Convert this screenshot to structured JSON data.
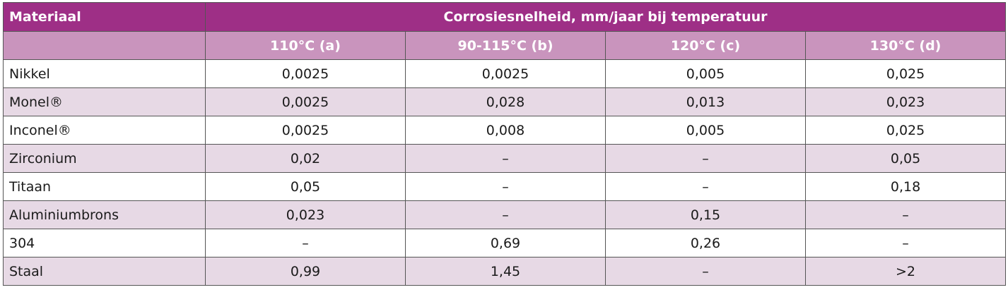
{
  "table": {
    "header": {
      "material_label": "Materiaal",
      "group_label": "Corrosiesnelheid, mm/jaar bij temperatuur",
      "columns": [
        "110°C (a)",
        "90-115°C (b)",
        "120°C (c)",
        "130°C (d)"
      ]
    },
    "rows": [
      {
        "material": "Nikkel",
        "values": [
          "0,0025",
          "0,0025",
          "0,005",
          "0,025"
        ]
      },
      {
        "material": "Monel®",
        "values": [
          "0,0025",
          "0,028",
          "0,013",
          "0,023"
        ]
      },
      {
        "material": "Inconel®",
        "values": [
          "0,0025",
          "0,008",
          "0,005",
          "0,025"
        ]
      },
      {
        "material": "Zirconium",
        "values": [
          "0,02",
          "–",
          "–",
          "0,05"
        ]
      },
      {
        "material": "Titaan",
        "values": [
          "0,05",
          "–",
          "–",
          "0,18"
        ]
      },
      {
        "material": "Aluminiumbrons",
        "values": [
          "0,023",
          "–",
          "0,15",
          "–"
        ]
      },
      {
        "material": "304",
        "values": [
          "–",
          "0,69",
          "0,26",
          "–"
        ]
      },
      {
        "material": "Staal",
        "values": [
          "0,99",
          "1,45",
          "–",
          ">2"
        ]
      }
    ],
    "colors": {
      "header_dark": "#9e2f86",
      "header_light": "#c994bd",
      "row_alt": "#e7d9e5",
      "border": "#555555"
    }
  }
}
